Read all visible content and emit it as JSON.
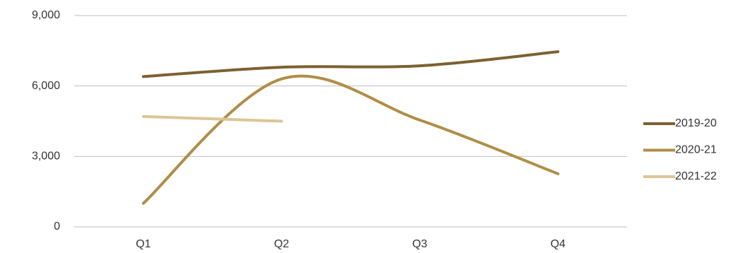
{
  "chart_data": {
    "type": "line",
    "categories": [
      "Q1",
      "Q2",
      "Q3",
      "Q4"
    ],
    "series": [
      {
        "name": "2019-20",
        "color": "#7d6130",
        "values": [
          6400,
          6800,
          6860,
          7460
        ]
      },
      {
        "name": "2020-21",
        "color": "#b08d47",
        "values": [
          1000,
          6300,
          4550,
          2260
        ]
      },
      {
        "name": "2021-22",
        "color": "#dcc597",
        "values": [
          4700,
          4500,
          null,
          null
        ]
      }
    ],
    "ylim": [
      0,
      9000
    ],
    "yticks": [
      0,
      {
        "value": 3000,
        "label": "3,000"
      },
      {
        "value": 6000,
        "label": "6,000"
      },
      {
        "value": 9000,
        "label": "9,000"
      }
    ],
    "grid": true,
    "legend": "right",
    "smooth": true
  }
}
